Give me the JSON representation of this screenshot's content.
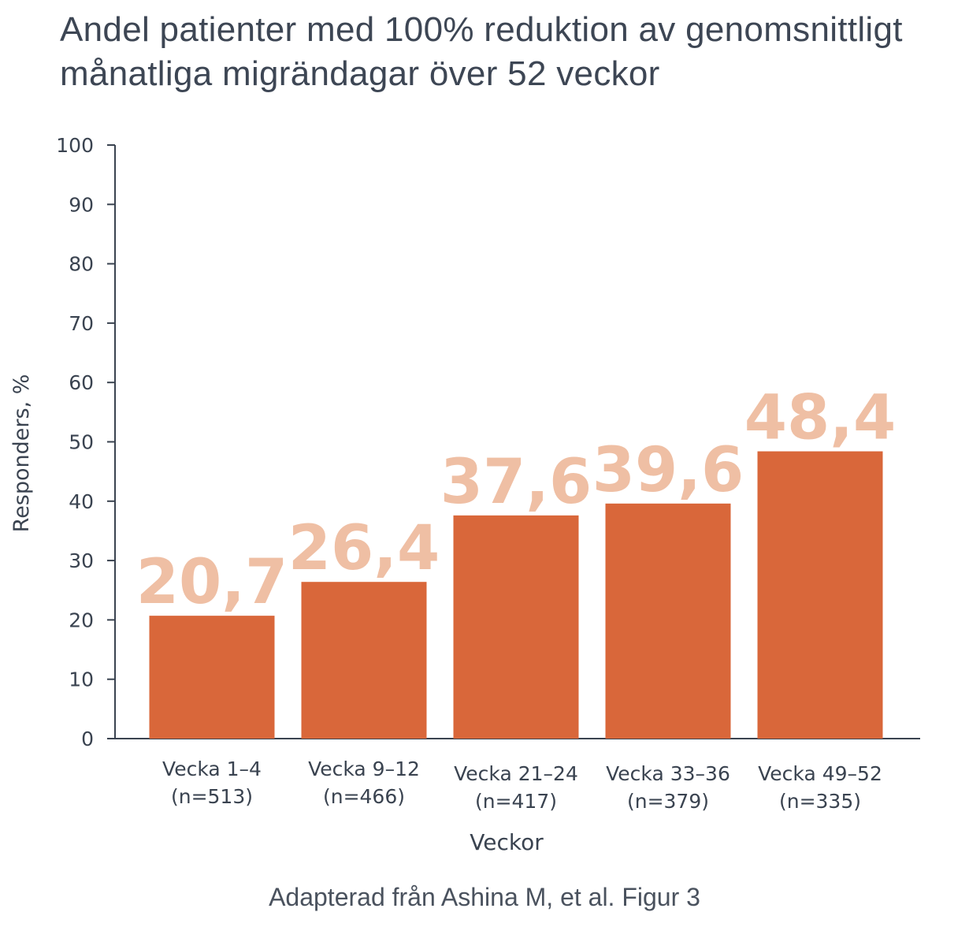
{
  "title": {
    "line1": "Andel patienter med 100% reduktion av genomsnittligt",
    "line2": "månatliga migrändagar över 52 veckor"
  },
  "caption": "Adapterad från Ashina M, et al. Figur 3",
  "colors": {
    "bar": "#d9673a",
    "value_label": "#efbfa4",
    "axis": "#3a4350",
    "text": "#3a4350"
  },
  "chart_data": {
    "type": "bar",
    "categories": [
      [
        "Vecka 1–4",
        "(n=513)"
      ],
      [
        "Vecka 9–12",
        "(n=466)"
      ],
      [
        "Vecka 21–24",
        "(n=417)"
      ],
      [
        "Vecka 33–36",
        "(n=379)"
      ],
      [
        "Vecka 49–52",
        "(n=335)"
      ]
    ],
    "values": [
      20.7,
      26.4,
      37.6,
      39.6,
      48.4
    ],
    "value_labels": [
      "20,7",
      "26,4",
      "37,6",
      "39,6",
      "48,4"
    ],
    "xlabel": "Veckor",
    "ylabel": "Responders, %",
    "ylim": [
      0,
      100
    ],
    "yticks": [
      0,
      10,
      20,
      30,
      40,
      50,
      60,
      70,
      80,
      90,
      100
    ],
    "grid": false
  }
}
